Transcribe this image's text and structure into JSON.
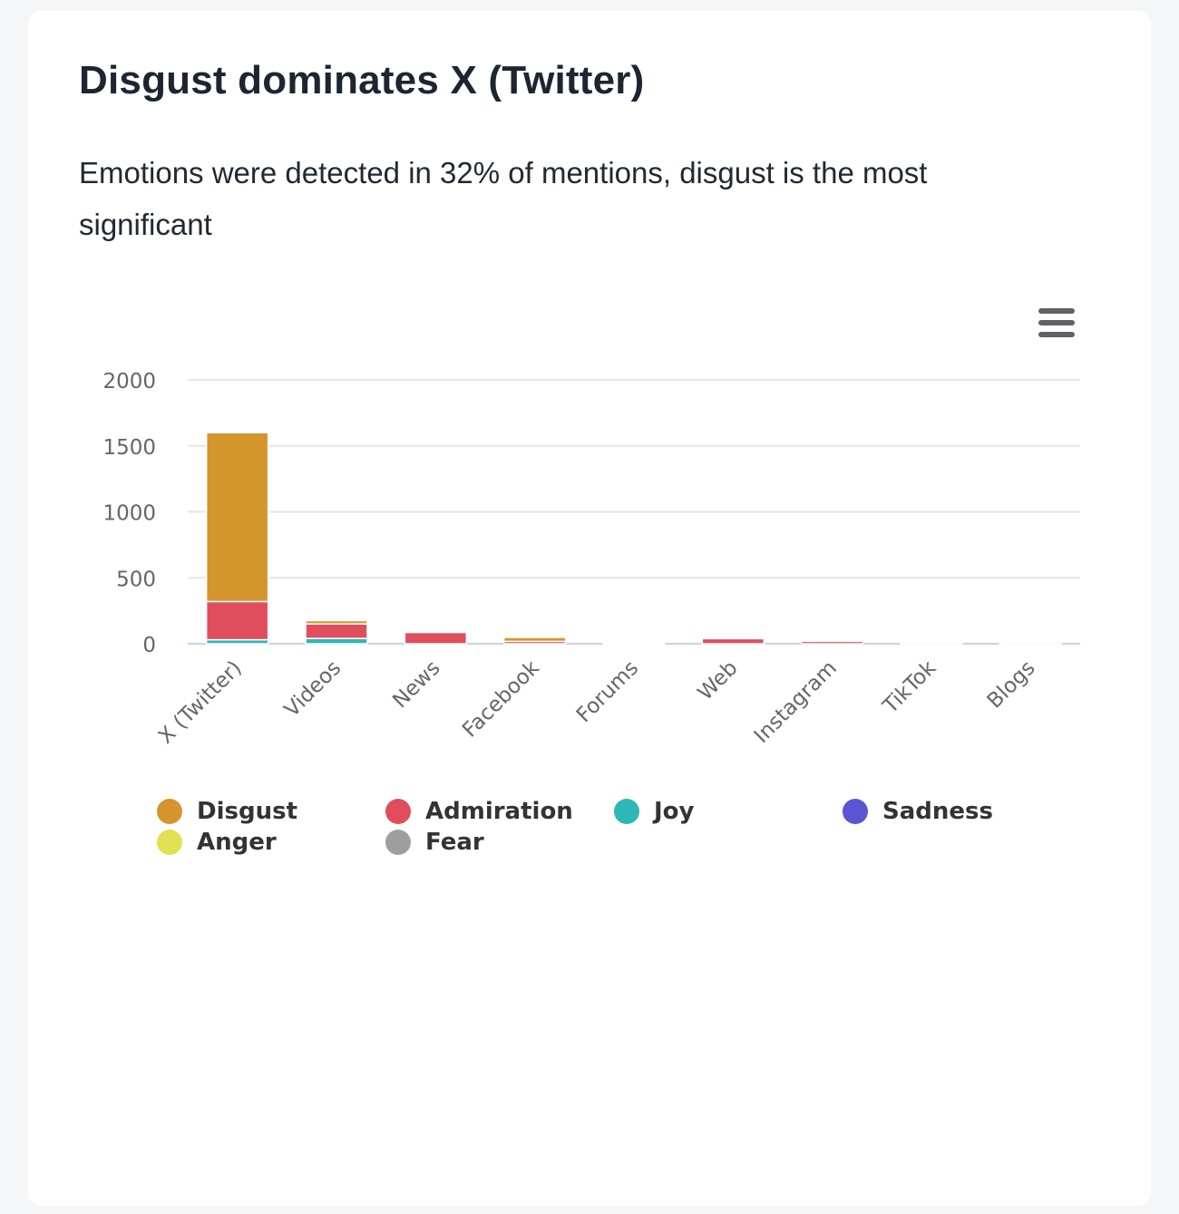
{
  "card": {
    "title": "Disgust dominates X (Twitter)",
    "subtitle": "Emotions were detected in 32% of mentions, disgust is the most significant"
  },
  "menu": {
    "icon": "hamburger-menu-icon"
  },
  "chart_data": {
    "type": "bar",
    "stacked": true,
    "categories": [
      "X (Twitter)",
      "Videos",
      "News",
      "Facebook",
      "Forums",
      "Web",
      "Instagram",
      "TikTok",
      "Blogs"
    ],
    "ylim": [
      0,
      2000
    ],
    "yticks": [
      0,
      500,
      1000,
      1500,
      2000
    ],
    "grid": true,
    "legend_position": "bottom",
    "series": [
      {
        "name": "Joy",
        "color": "#2db7b5",
        "values": [
          30,
          40,
          0,
          0,
          0,
          0,
          0,
          0,
          0
        ]
      },
      {
        "name": "Admiration",
        "color": "#e04e5e",
        "values": [
          290,
          110,
          85,
          18,
          2,
          38,
          18,
          3,
          1
        ]
      },
      {
        "name": "Disgust",
        "color": "#d4952c",
        "values": [
          1280,
          25,
          0,
          30,
          0,
          0,
          0,
          0,
          0
        ]
      },
      {
        "name": "Sadness",
        "color": "#5b55d4",
        "values": [
          0,
          0,
          0,
          0,
          0,
          0,
          0,
          0,
          0
        ]
      },
      {
        "name": "Anger",
        "color": "#e3df52",
        "values": [
          0,
          0,
          0,
          0,
          0,
          0,
          0,
          0,
          0
        ]
      },
      {
        "name": "Fear",
        "color": "#9e9e9e",
        "values": [
          0,
          0,
          0,
          0,
          0,
          0,
          0,
          0,
          0
        ]
      }
    ],
    "legend": [
      {
        "name": "Disgust",
        "color": "#d4952c"
      },
      {
        "name": "Admiration",
        "color": "#e04e5e"
      },
      {
        "name": "Joy",
        "color": "#2db7b5"
      },
      {
        "name": "Sadness",
        "color": "#5b55d4"
      },
      {
        "name": "Anger",
        "color": "#e3df52"
      },
      {
        "name": "Fear",
        "color": "#9e9e9e"
      }
    ]
  }
}
